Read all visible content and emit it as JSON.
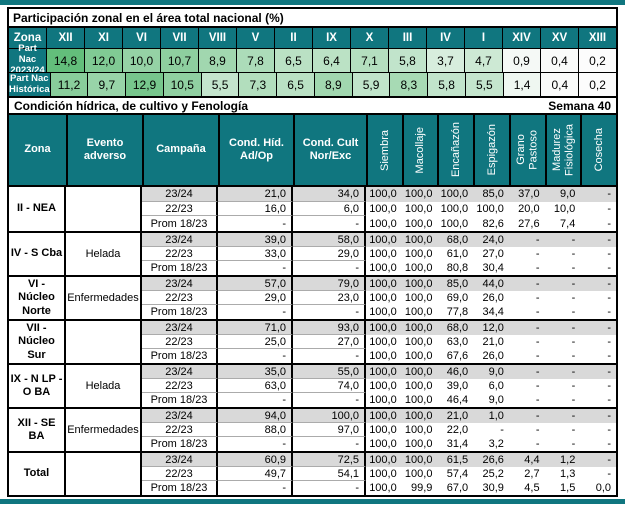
{
  "colors": {
    "teal": "#10767F",
    "green_scale_max": "#63BE7B",
    "green_scale_min": "#FCFCFC",
    "highlight_row_gray": "#D9D9D9"
  },
  "participation": {
    "title": "Participación zonal en el área total nacional (%)",
    "zona_label": "Zona",
    "zones": [
      "XII",
      "XI",
      "VI",
      "VII",
      "VIII",
      "V",
      "II",
      "IX",
      "X",
      "III",
      "IV",
      "I",
      "XIV",
      "XV",
      "XIII"
    ],
    "rows": [
      {
        "label": "Part Nac\n2023/24",
        "values": [
          "14,8",
          "12,0",
          "10,0",
          "10,7",
          "8,9",
          "7,8",
          "6,5",
          "6,4",
          "7,1",
          "5,8",
          "3,7",
          "4,7",
          "0,9",
          "0,4",
          "0,2"
        ]
      },
      {
        "label": "Part Nac\nHistórica",
        "values": [
          "11,2",
          "9,7",
          "12,9",
          "10,5",
          "5,5",
          "7,3",
          "6,5",
          "8,9",
          "5,9",
          "8,3",
          "5,8",
          "5,5",
          "1,4",
          "0,4",
          "0,2"
        ]
      }
    ],
    "scale_min": 0.2,
    "scale_max": 14.8
  },
  "condition": {
    "title": "Condición hídrica, de cultivo y Fenología",
    "week_label": "Semana 40",
    "headers": {
      "zona": "Zona",
      "evento": "Evento\nadverso",
      "campana": "Campaña",
      "cond_hid": "Cond. Híd.\nAd/Op",
      "cond_cult": "Cond. Cult\nNor/Exc"
    },
    "phenology_headers": [
      "Siembra",
      "Macollaje",
      "Encañazón",
      "Espigazón",
      "Grano\nPastoso",
      "Madurez\nFisiológica",
      "Cosecha"
    ],
    "groups": [
      {
        "zona": "II - NEA",
        "evento": "",
        "rows": [
          {
            "campana": "23/24",
            "cond_hid": "21,0",
            "cond_cult": "34,0",
            "phen": [
              "100,0",
              "100,0",
              "100,0",
              "85,0",
              "37,0",
              "9,0",
              "-"
            ]
          },
          {
            "campana": "22/23",
            "cond_hid": "16,0",
            "cond_cult": "6,0",
            "phen": [
              "100,0",
              "100,0",
              "100,0",
              "100,0",
              "20,0",
              "10,0",
              "-"
            ]
          },
          {
            "campana": "Prom 18/23",
            "cond_hid": "-",
            "cond_cult": "-",
            "phen": [
              "100,0",
              "100,0",
              "100,0",
              "82,6",
              "27,6",
              "7,4",
              "-"
            ]
          }
        ]
      },
      {
        "zona": "IV - S Cba",
        "evento": "Helada",
        "rows": [
          {
            "campana": "23/24",
            "cond_hid": "39,0",
            "cond_cult": "58,0",
            "phen": [
              "100,0",
              "100,0",
              "68,0",
              "24,0",
              "-",
              "-",
              "-"
            ]
          },
          {
            "campana": "22/23",
            "cond_hid": "33,0",
            "cond_cult": "29,0",
            "phen": [
              "100,0",
              "100,0",
              "61,0",
              "27,0",
              "-",
              "-",
              "-"
            ]
          },
          {
            "campana": "Prom 18/23",
            "cond_hid": "-",
            "cond_cult": "-",
            "phen": [
              "100,0",
              "100,0",
              "80,8",
              "30,4",
              "-",
              "-",
              "-"
            ]
          }
        ]
      },
      {
        "zona": "VI - Núcleo Norte",
        "evento": "Enfermedades",
        "rows": [
          {
            "campana": "23/24",
            "cond_hid": "57,0",
            "cond_cult": "79,0",
            "phen": [
              "100,0",
              "100,0",
              "85,0",
              "44,0",
              "-",
              "-",
              "-"
            ]
          },
          {
            "campana": "22/23",
            "cond_hid": "29,0",
            "cond_cult": "23,0",
            "phen": [
              "100,0",
              "100,0",
              "69,0",
              "26,0",
              "-",
              "-",
              "-"
            ]
          },
          {
            "campana": "Prom 18/23",
            "cond_hid": "-",
            "cond_cult": "-",
            "phen": [
              "100,0",
              "100,0",
              "77,8",
              "34,4",
              "-",
              "-",
              "-"
            ]
          }
        ]
      },
      {
        "zona": "VII - Núcleo Sur",
        "evento": "",
        "rows": [
          {
            "campana": "23/24",
            "cond_hid": "71,0",
            "cond_cult": "93,0",
            "phen": [
              "100,0",
              "100,0",
              "68,0",
              "12,0",
              "-",
              "-",
              "-"
            ]
          },
          {
            "campana": "22/23",
            "cond_hid": "25,0",
            "cond_cult": "27,0",
            "phen": [
              "100,0",
              "100,0",
              "63,0",
              "21,0",
              "-",
              "-",
              "-"
            ]
          },
          {
            "campana": "Prom 18/23",
            "cond_hid": "-",
            "cond_cult": "-",
            "phen": [
              "100,0",
              "100,0",
              "67,6",
              "26,0",
              "-",
              "-",
              "-"
            ]
          }
        ]
      },
      {
        "zona": "IX - N LP - O BA",
        "evento": "Helada",
        "rows": [
          {
            "campana": "23/24",
            "cond_hid": "35,0",
            "cond_cult": "55,0",
            "phen": [
              "100,0",
              "100,0",
              "46,0",
              "9,0",
              "-",
              "-",
              "-"
            ]
          },
          {
            "campana": "22/23",
            "cond_hid": "63,0",
            "cond_cult": "74,0",
            "phen": [
              "100,0",
              "100,0",
              "39,0",
              "6,0",
              "-",
              "-",
              "-"
            ]
          },
          {
            "campana": "Prom 18/23",
            "cond_hid": "-",
            "cond_cult": "-",
            "phen": [
              "100,0",
              "100,0",
              "46,4",
              "9,0",
              "-",
              "-",
              "-"
            ]
          }
        ]
      },
      {
        "zona": "XII - SE BA",
        "evento": "Enfermedades",
        "rows": [
          {
            "campana": "23/24",
            "cond_hid": "94,0",
            "cond_cult": "100,0",
            "phen": [
              "100,0",
              "100,0",
              "21,0",
              "1,0",
              "-",
              "-",
              "-"
            ]
          },
          {
            "campana": "22/23",
            "cond_hid": "88,0",
            "cond_cult": "97,0",
            "phen": [
              "100,0",
              "100,0",
              "22,0",
              "-",
              "-",
              "-",
              "-"
            ]
          },
          {
            "campana": "Prom 18/23",
            "cond_hid": "-",
            "cond_cult": "-",
            "phen": [
              "100,0",
              "100,0",
              "31,4",
              "3,2",
              "-",
              "-",
              "-"
            ]
          }
        ]
      },
      {
        "zona": "Total",
        "evento": "",
        "rows": [
          {
            "campana": "23/24",
            "cond_hid": "60,9",
            "cond_cult": "72,5",
            "phen": [
              "100,0",
              "100,0",
              "61,5",
              "26,6",
              "4,4",
              "1,2",
              "-"
            ]
          },
          {
            "campana": "22/23",
            "cond_hid": "49,7",
            "cond_cult": "54,1",
            "phen": [
              "100,0",
              "100,0",
              "57,4",
              "25,2",
              "2,7",
              "1,3",
              "-"
            ]
          },
          {
            "campana": "Prom 18/23",
            "cond_hid": "-",
            "cond_cult": "-",
            "phen": [
              "100,0",
              "99,9",
              "67,0",
              "30,9",
              "4,5",
              "1,5",
              "0,0"
            ]
          }
        ]
      }
    ]
  }
}
